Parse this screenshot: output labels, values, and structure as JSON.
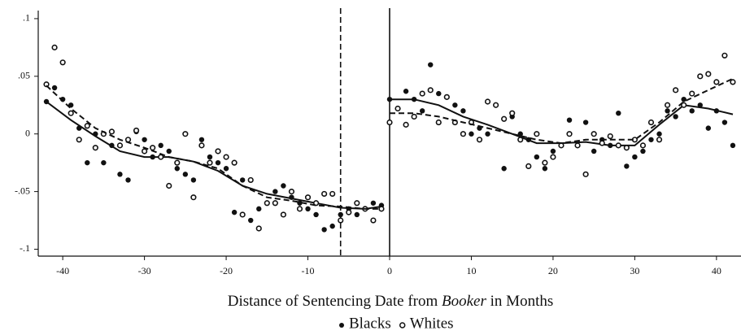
{
  "chart_data": {
    "type": "scatter",
    "x_label": [
      "Distance of Sentencing Date from ",
      "Booker",
      " in Months"
    ],
    "x": [
      -42,
      -41,
      -40,
      -39,
      -38,
      -37,
      -36,
      -35,
      -34,
      -33,
      -32,
      -31,
      -30,
      -29,
      -28,
      -27,
      -26,
      -25,
      -24,
      -23,
      -22,
      -21,
      -20,
      -19,
      -18,
      -17,
      -16,
      -15,
      -14,
      -13,
      -12,
      -11,
      -10,
      -9,
      -8,
      -7,
      -6,
      -5,
      -4,
      -3,
      -2,
      -1,
      0,
      1,
      2,
      3,
      4,
      5,
      6,
      7,
      8,
      9,
      10,
      11,
      12,
      13,
      14,
      15,
      16,
      17,
      18,
      19,
      20,
      21,
      22,
      23,
      24,
      25,
      26,
      27,
      28,
      29,
      30,
      31,
      32,
      33,
      34,
      35,
      36,
      37,
      38,
      39,
      40,
      41,
      42
    ],
    "fit_x_before": [
      -42,
      -39,
      -36,
      -33,
      -30,
      -27,
      -24,
      -21,
      -18,
      -15,
      -12,
      -9,
      -6,
      -3,
      -1
    ],
    "fit_x_after": [
      0,
      3,
      6,
      9,
      12,
      15,
      18,
      21,
      24,
      27,
      30,
      33,
      36,
      39,
      42
    ],
    "series": [
      {
        "name": "Blacks",
        "color": "#111111",
        "marker": "filled",
        "line": "solid",
        "values": [
          0.028,
          0.04,
          0.03,
          0.025,
          0.005,
          -0.025,
          0.0,
          -0.025,
          -0.01,
          -0.035,
          -0.04,
          0.002,
          -0.005,
          -0.02,
          -0.01,
          -0.015,
          -0.03,
          -0.035,
          -0.04,
          -0.005,
          -0.02,
          -0.025,
          -0.03,
          -0.068,
          -0.04,
          -0.075,
          -0.065,
          -0.06,
          -0.05,
          -0.045,
          -0.055,
          -0.06,
          -0.065,
          -0.07,
          -0.083,
          -0.08,
          -0.07,
          -0.065,
          -0.07,
          -0.065,
          -0.06,
          -0.062,
          0.03,
          0.022,
          0.037,
          0.03,
          0.02,
          0.06,
          0.035,
          0.032,
          0.025,
          0.02,
          0.0,
          0.005,
          0.0,
          0.025,
          -0.03,
          0.015,
          0.0,
          -0.005,
          -0.02,
          -0.03,
          -0.015,
          -0.01,
          0.012,
          -0.01,
          0.01,
          -0.015,
          -0.005,
          -0.01,
          0.018,
          -0.028,
          -0.02,
          -0.015,
          -0.005,
          0.0,
          0.02,
          0.015,
          0.03,
          0.02,
          0.025,
          0.005,
          0.02,
          0.01,
          -0.01
        ],
        "fit_before": [
          0.028,
          0.012,
          -0.002,
          -0.015,
          -0.02,
          -0.02,
          -0.024,
          -0.032,
          -0.045,
          -0.052,
          -0.056,
          -0.06,
          -0.064,
          -0.065,
          -0.063
        ],
        "fit_after": [
          0.03,
          0.03,
          0.025,
          0.015,
          0.008,
          0.0,
          -0.008,
          -0.008,
          -0.007,
          -0.01,
          -0.01,
          0.008,
          0.025,
          0.022,
          0.017
        ]
      },
      {
        "name": "Whites",
        "color": "#111111",
        "marker": "open",
        "line": "dashed",
        "values": [
          0.043,
          0.075,
          0.062,
          0.018,
          -0.005,
          0.007,
          -0.012,
          0.0,
          0.002,
          -0.01,
          -0.005,
          0.003,
          -0.015,
          -0.012,
          -0.02,
          -0.045,
          -0.025,
          0.0,
          -0.055,
          -0.01,
          -0.025,
          -0.015,
          -0.02,
          -0.025,
          -0.07,
          -0.04,
          -0.082,
          -0.06,
          -0.06,
          -0.07,
          -0.05,
          -0.065,
          -0.055,
          -0.06,
          -0.052,
          -0.052,
          -0.075,
          -0.068,
          -0.06,
          -0.065,
          -0.075,
          -0.065,
          0.01,
          0.022,
          0.008,
          0.015,
          0.035,
          0.038,
          0.01,
          0.032,
          0.01,
          0.0,
          0.01,
          -0.005,
          0.028,
          0.025,
          0.013,
          0.018,
          -0.005,
          -0.028,
          0.0,
          -0.025,
          -0.02,
          -0.01,
          0.0,
          -0.01,
          -0.035,
          0.0,
          -0.008,
          -0.002,
          -0.01,
          -0.012,
          -0.005,
          -0.01,
          0.01,
          -0.005,
          0.025,
          0.038,
          0.025,
          0.035,
          0.05,
          0.052,
          0.045,
          0.068,
          0.045
        ],
        "fit_before": [
          0.042,
          0.022,
          0.005,
          -0.005,
          -0.012,
          -0.02,
          -0.024,
          -0.03,
          -0.045,
          -0.055,
          -0.058,
          -0.062,
          -0.063,
          -0.065,
          -0.065
        ],
        "fit_after": [
          0.018,
          0.018,
          0.015,
          0.01,
          0.005,
          0.0,
          -0.005,
          -0.008,
          -0.005,
          -0.005,
          -0.005,
          0.01,
          0.028,
          0.038,
          0.048
        ]
      }
    ],
    "reference_lines": [
      {
        "x": -6,
        "style": "dashed"
      },
      {
        "x": 0,
        "style": "solid"
      }
    ],
    "xlim": [
      -43,
      43
    ],
    "xticks": [
      -40,
      -30,
      -20,
      -10,
      0,
      10,
      20,
      30,
      40
    ],
    "ylim": [
      -0.106,
      0.107
    ],
    "yticks": [
      {
        "value": -0.1,
        "label": "-.1"
      },
      {
        "value": -0.05,
        "label": "-.05"
      },
      {
        "value": 0,
        "label": "0"
      },
      {
        "value": 0.05,
        "label": ".05"
      },
      {
        "value": 0.1,
        "label": ".1"
      }
    ],
    "legend": "bottom"
  }
}
